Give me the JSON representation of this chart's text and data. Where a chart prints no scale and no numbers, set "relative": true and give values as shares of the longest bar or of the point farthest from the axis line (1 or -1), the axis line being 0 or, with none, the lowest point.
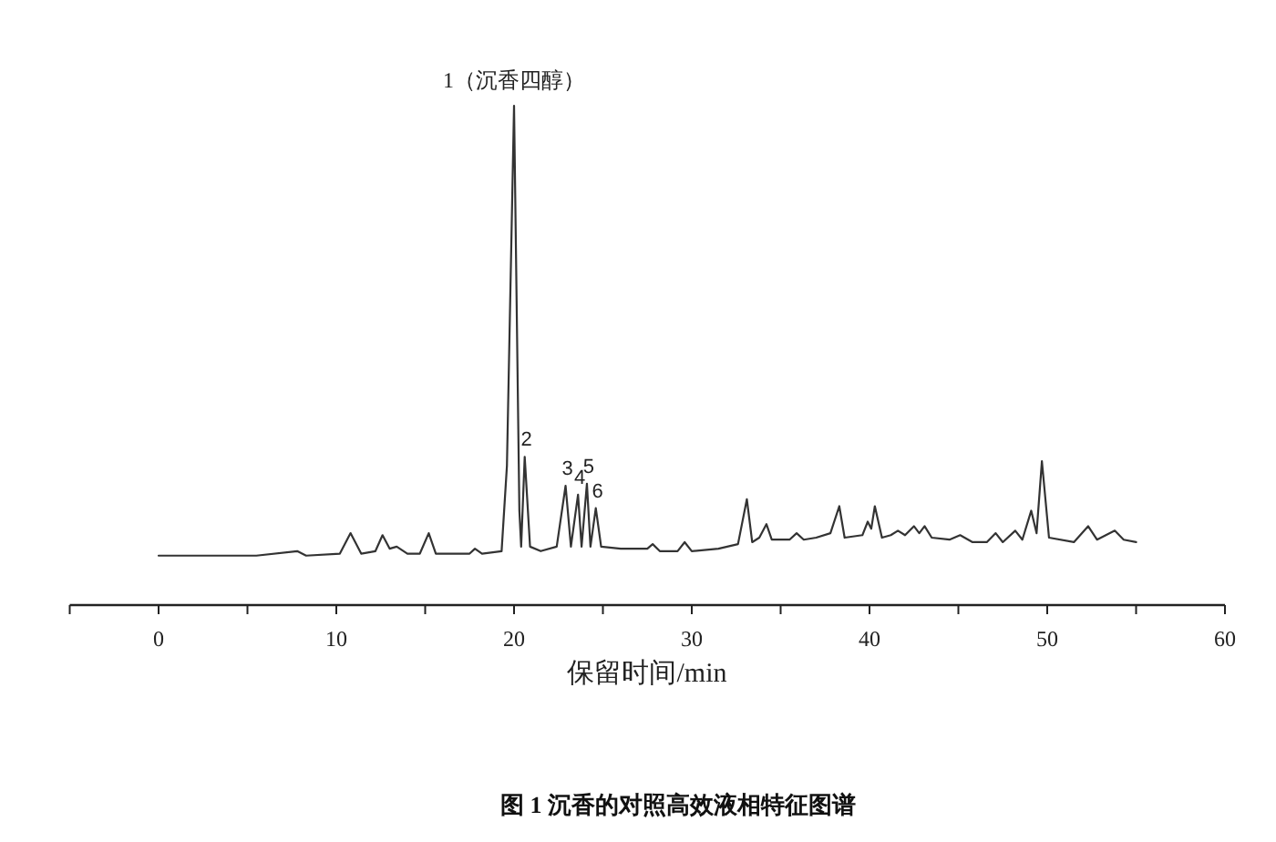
{
  "chart_data": {
    "type": "line",
    "title": "图 1 沉香的对照高效液相特征图谱",
    "xlabel": "保留时间/min",
    "relative": true,
    "xlim": [
      -5,
      60
    ],
    "xticks": [
      {
        "value": -5,
        "label": null
      },
      0,
      {
        "value": 5,
        "label": null
      },
      10,
      {
        "value": 15,
        "label": null
      },
      20,
      {
        "value": 25,
        "label": null
      },
      30,
      {
        "value": 35,
        "label": null
      },
      40,
      {
        "value": 45,
        "label": null
      },
      50,
      {
        "value": 55,
        "label": null
      },
      60
    ],
    "tick_labels": "x",
    "grid": false,
    "marker": "none",
    "line_style": "solid",
    "series": [
      {
        "color": "#333333",
        "x": [
          0,
          5.5,
          7.8,
          8.3,
          10.2,
          10.8,
          11.4,
          12.2,
          12.6,
          13.0,
          13.4,
          14.0,
          14.7,
          15.2,
          15.6,
          17.5,
          17.8,
          18.2,
          19.3,
          19.6,
          20.0,
          20.3,
          20.4,
          20.6,
          20.9,
          21.5,
          22.4,
          22.9,
          23.2,
          23.6,
          23.8,
          24.1,
          24.3,
          24.6,
          24.9,
          26,
          27.5,
          27.8,
          28.2,
          29.2,
          29.6,
          30,
          31.5,
          32.6,
          33.1,
          33.4,
          33.8,
          34.2,
          34.5,
          35.5,
          35.9,
          36.3,
          37,
          37.8,
          38.3,
          38.6,
          39.6,
          39.9,
          40.1,
          40.3,
          40.7,
          41.2,
          41.6,
          42.0,
          42.5,
          42.8,
          43.1,
          43.5,
          44.5,
          45.1,
          45.8,
          46.6,
          47.1,
          47.5,
          48.2,
          48.6,
          49.1,
          49.4,
          49.7,
          50.1,
          51.5,
          52.3,
          52.8,
          53.8,
          54.3,
          55
        ],
        "values": [
          0.099,
          0.099,
          0.108,
          0.099,
          0.103,
          0.144,
          0.103,
          0.108,
          0.14,
          0.113,
          0.117,
          0.103,
          0.103,
          0.144,
          0.103,
          0.103,
          0.113,
          0.103,
          0.108,
          0.279,
          1,
          0.189,
          0.117,
          0.297,
          0.117,
          0.108,
          0.117,
          0.239,
          0.117,
          0.221,
          0.117,
          0.243,
          0.117,
          0.194,
          0.117,
          0.113,
          0.113,
          0.122,
          0.108,
          0.108,
          0.126,
          0.108,
          0.113,
          0.122,
          0.212,
          0.126,
          0.135,
          0.162,
          0.131,
          0.131,
          0.144,
          0.131,
          0.135,
          0.144,
          0.198,
          0.135,
          0.14,
          0.167,
          0.153,
          0.198,
          0.135,
          0.14,
          0.149,
          0.14,
          0.158,
          0.144,
          0.158,
          0.135,
          0.131,
          0.14,
          0.126,
          0.126,
          0.144,
          0.126,
          0.149,
          0.131,
          0.189,
          0.144,
          0.288,
          0.135,
          0.126,
          0.158,
          0.131,
          0.149,
          0.131,
          0.126
        ]
      }
    ],
    "annotations": [
      {
        "text": "1（沉香四醇）",
        "x": 20.0,
        "y": 1
      },
      {
        "text": "2",
        "x": 20.6,
        "y": 0.297
      },
      {
        "text": "3",
        "x": 22.9,
        "y": 0.239
      },
      {
        "text": "4",
        "x": 23.6,
        "y": 0.221
      },
      {
        "text": "5",
        "x": 24.1,
        "y": 0.243
      },
      {
        "text": "6",
        "x": 24.6,
        "y": 0.194
      }
    ]
  }
}
